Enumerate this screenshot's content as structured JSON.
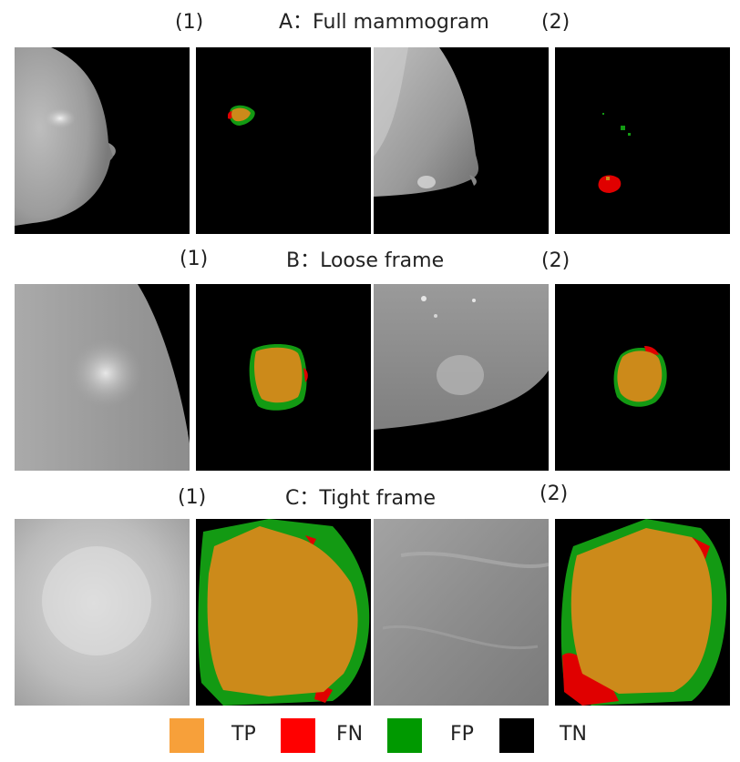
{
  "rows": [
    {
      "title": "A：Full mammogram",
      "left_index": "(1)",
      "right_index": "(2)"
    },
    {
      "title": "B：Loose frame",
      "left_index": "(1)",
      "right_index": "(2)"
    },
    {
      "title": "C：Tight frame",
      "left_index": "(1)",
      "right_index": "(2)"
    }
  ],
  "legend": [
    {
      "label": "TP",
      "color": "#f7a03a"
    },
    {
      "label": "FN",
      "color": "#ff0000"
    },
    {
      "label": "FP",
      "color": "#009900"
    },
    {
      "label": "TN",
      "color": "#000000"
    }
  ],
  "colors": {
    "tp": "#cc8a1a",
    "fn": "#e00000",
    "fp": "#139a13",
    "tn": "#000000"
  }
}
